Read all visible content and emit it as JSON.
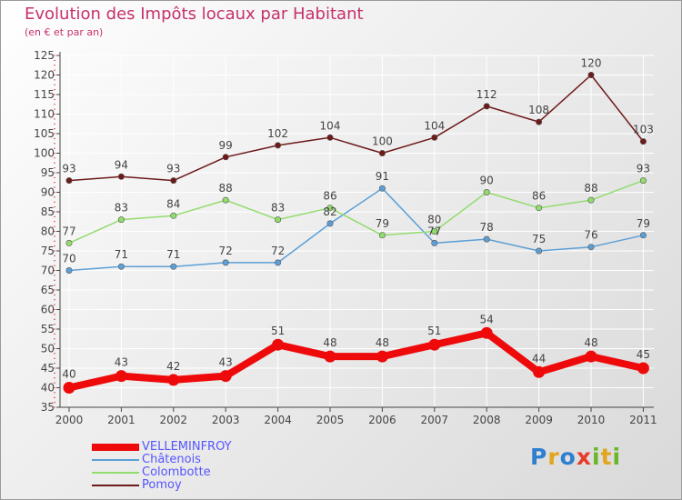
{
  "colors": {
    "title": "#c6306c",
    "axis": "#444444",
    "grid": "#ffffff",
    "label": "#444444",
    "logo": [
      "#2e7fd0",
      "#e3a51c",
      "#2e7fd0",
      "#e83b2c",
      "#69b627",
      "#e3a51c"
    ]
  },
  "chart_data": {
    "type": "line",
    "title": "Evolution des Impôts locaux par Habitant",
    "subtitle": "(en € et par an)",
    "x": [
      "2000",
      "2001",
      "2002",
      "2003",
      "2004",
      "2005",
      "2006",
      "2007",
      "2008",
      "2009",
      "2010",
      "2011"
    ],
    "y_ticks": [
      35,
      40,
      45,
      50,
      55,
      60,
      65,
      70,
      75,
      80,
      85,
      90,
      95,
      100,
      105,
      110,
      115,
      120,
      125
    ],
    "ylim": [
      35,
      125
    ],
    "grid": true,
    "legend_position": "bottom-left",
    "series": [
      {
        "name": "VELLEMINFROY",
        "color": "#ee0a0a",
        "legend_color": "#5555ff",
        "values": [
          40,
          43,
          42,
          43,
          51,
          48,
          48,
          51,
          54,
          44,
          48,
          45
        ],
        "width": 8
      },
      {
        "name": "Châtenois",
        "color": "#5c9fd6",
        "legend_color": "#5555ff",
        "values": [
          70,
          71,
          71,
          72,
          72,
          82,
          91,
          77,
          78,
          75,
          76,
          79
        ],
        "width": 1.5
      },
      {
        "name": "Colombotte",
        "color": "#92dc6d",
        "legend_color": "#5555ff",
        "values": [
          77,
          83,
          84,
          88,
          83,
          86,
          79,
          80,
          90,
          86,
          88,
          93
        ],
        "width": 1.5
      },
      {
        "name": "Pomoy",
        "color": "#6e1a1a",
        "legend_color": "#5555ff",
        "values": [
          93,
          94,
          93,
          99,
          102,
          104,
          100,
          104,
          112,
          108,
          120,
          103
        ],
        "width": 1.5
      }
    ]
  },
  "logo": {
    "letters": [
      "P",
      "r",
      "o",
      "x",
      "i",
      "t",
      "i"
    ]
  }
}
